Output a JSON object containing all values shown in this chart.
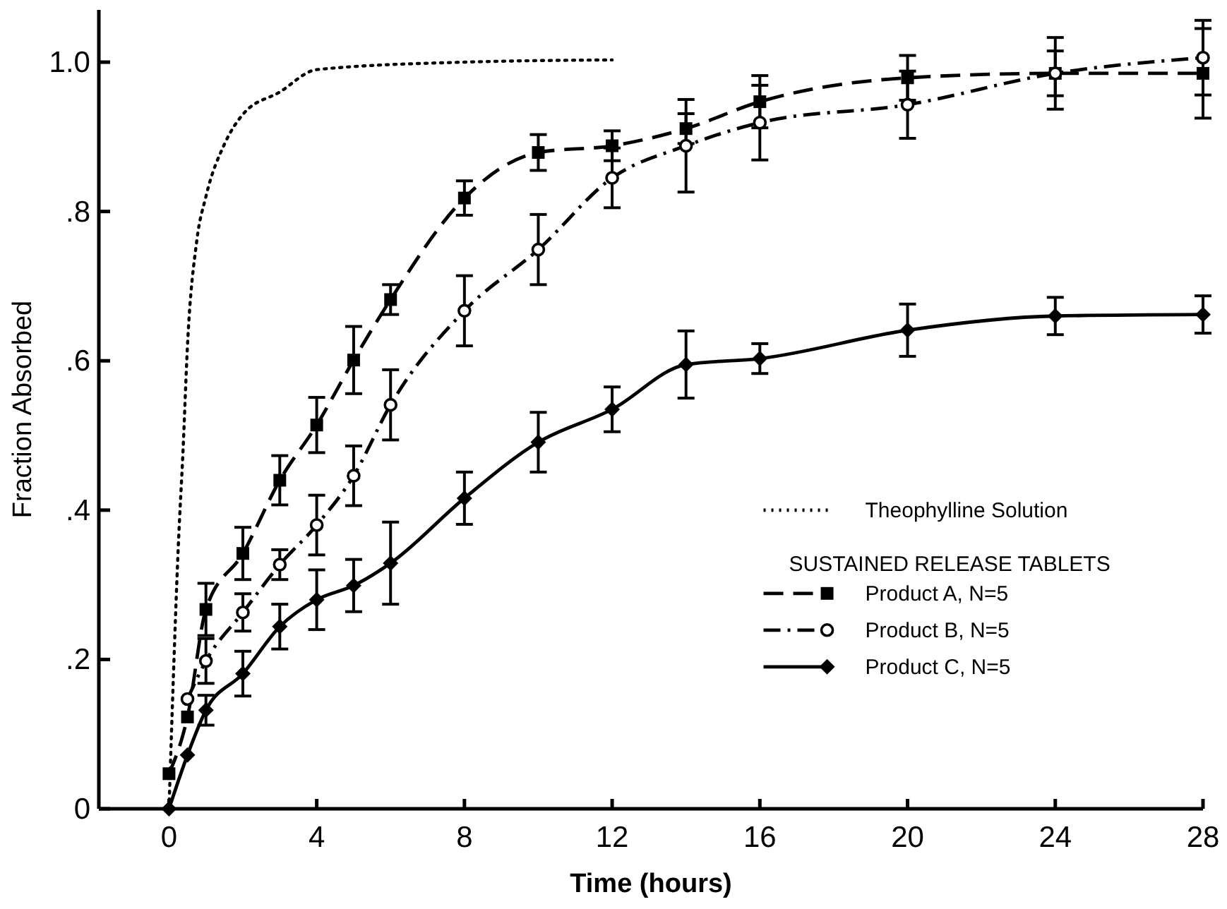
{
  "chart_data": {
    "type": "line",
    "xlabel": "Time (hours)",
    "ylabel": "Fraction  Absorbed",
    "legend_title": "SUSTAINED RELEASE TABLETS",
    "legend": "right",
    "grid": false,
    "xlim": [
      -1.9,
      28
    ],
    "xticks": [
      0,
      4,
      8,
      12,
      16,
      20,
      24,
      28
    ],
    "ylim": [
      0,
      1.07
    ],
    "yticks": [
      0,
      {
        "value": 0.2,
        "label": ".2"
      },
      {
        "value": 0.4,
        "label": ".4"
      },
      {
        "value": 0.6,
        "label": ".6"
      },
      {
        "value": 0.8,
        "label": ".8"
      },
      {
        "value": 1.0,
        "label": "1.0"
      }
    ],
    "series": [
      {
        "name": "Theophylline Solution",
        "color": "#000000",
        "marker": "none",
        "line_style": "dotted",
        "x": [
          0,
          0.1,
          0.25,
          0.38,
          0.5,
          0.75,
          1,
          1.5,
          2,
          3,
          4,
          8,
          12
        ],
        "values": [
          0,
          0.15,
          0.35,
          0.48,
          0.62,
          0.76,
          0.82,
          0.89,
          0.93,
          0.96,
          0.99,
          1.0,
          1.003
        ]
      },
      {
        "name": "Product  A,  N=5",
        "color": "#000000",
        "marker": "square",
        "line_style": "dashed",
        "x": [
          0,
          0.5,
          1,
          2,
          3,
          4,
          5,
          6,
          8,
          10,
          12,
          14,
          16,
          20,
          24,
          28
        ],
        "values": [
          0.047,
          0.123,
          0.267,
          0.342,
          0.44,
          0.514,
          0.601,
          0.682,
          0.818,
          0.879,
          0.888,
          0.911,
          0.947,
          0.979,
          0.985,
          0.985
        ],
        "errors": [
          null,
          null,
          0.035,
          0.035,
          0.033,
          0.037,
          0.045,
          0.02,
          0.023,
          0.024,
          0.02,
          0.02,
          0.035,
          0.03,
          0.03,
          0.06
        ]
      },
      {
        "name": "Product  B,  N=5",
        "color": "#000000",
        "marker": "circle",
        "line_style": "dashdot",
        "x": [
          0.5,
          1,
          2,
          3,
          4,
          5,
          6,
          8,
          10,
          12,
          14,
          16,
          20,
          24,
          28
        ],
        "values": [
          0.147,
          0.198,
          0.263,
          0.327,
          0.38,
          0.446,
          0.541,
          0.667,
          0.749,
          0.845,
          0.888,
          0.919,
          0.943,
          0.985,
          1.006
        ],
        "errors": [
          null,
          0.03,
          0.025,
          0.02,
          0.04,
          0.04,
          0.047,
          0.047,
          0.047,
          0.04,
          0.062,
          0.05,
          0.045,
          0.048,
          0.05
        ]
      },
      {
        "name": "Product  C,  N=5",
        "color": "#000000",
        "marker": "diamond",
        "line_style": "solid",
        "x": [
          0,
          0.5,
          1,
          2,
          3,
          4,
          5,
          6,
          8,
          10,
          12,
          14,
          16,
          20,
          24,
          28
        ],
        "values": [
          0,
          0.072,
          0.132,
          0.181,
          0.244,
          0.28,
          0.299,
          0.329,
          0.416,
          0.491,
          0.535,
          0.595,
          0.603,
          0.641,
          0.66,
          0.662
        ],
        "errors": [
          null,
          null,
          0.02,
          0.03,
          0.03,
          0.04,
          0.035,
          0.055,
          0.035,
          0.04,
          0.03,
          0.045,
          0.02,
          0.035,
          0.025,
          0.025
        ]
      }
    ]
  }
}
